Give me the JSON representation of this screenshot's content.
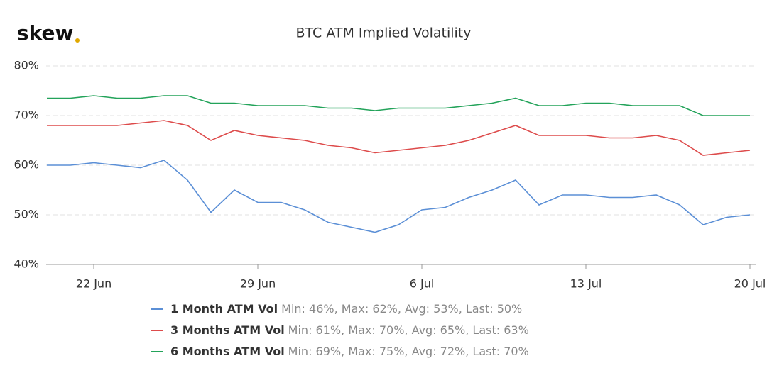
{
  "logo": "skew",
  "chart_data": {
    "type": "line",
    "title": "BTC ATM Implied Volatility",
    "x": [
      "20 Jun",
      "21 Jun",
      "22 Jun",
      "23 Jun",
      "24 Jun",
      "25 Jun",
      "26 Jun",
      "27 Jun",
      "28 Jun",
      "29 Jun",
      "30 Jun",
      "1 Jul",
      "2 Jul",
      "3 Jul",
      "4 Jul",
      "5 Jul",
      "6 Jul",
      "7 Jul",
      "8 Jul",
      "9 Jul",
      "10 Jul",
      "11 Jul",
      "12 Jul",
      "13 Jul",
      "14 Jul",
      "15 Jul",
      "16 Jul",
      "17 Jul",
      "18 Jul",
      "19 Jul",
      "20 Jul"
    ],
    "xticks": [
      "22 Jun",
      "29 Jun",
      "6 Jul",
      "13 Jul",
      "20 Jul"
    ],
    "ylim": [
      40,
      80
    ],
    "yticks": [
      {
        "value": 40,
        "label": "40%"
      },
      {
        "value": 50,
        "label": "50%"
      },
      {
        "value": 60,
        "label": "60%"
      },
      {
        "value": 70,
        "label": "70%"
      },
      {
        "value": 80,
        "label": "80%"
      }
    ],
    "grid": true,
    "legend": "bottom",
    "series": [
      {
        "name": "1 Month ATM Vol",
        "color": "#5b8fd6",
        "summary": "Min: 46%, Max: 62%, Avg: 53%, Last: 50%",
        "values": [
          60,
          60,
          60.5,
          60,
          59.5,
          61,
          57,
          50.5,
          55,
          52.5,
          52.5,
          51,
          48.5,
          47.5,
          46.5,
          48,
          51,
          51.5,
          53.5,
          55,
          57,
          52,
          54,
          54,
          53.5,
          53.5,
          54,
          52,
          48,
          49.5,
          50
        ]
      },
      {
        "name": "3 Months ATM Vol",
        "color": "#dd4b4b",
        "summary": "Min: 61%, Max: 70%, Avg: 65%, Last: 63%",
        "values": [
          68,
          68,
          68,
          68,
          68.5,
          69,
          68,
          65,
          67,
          66,
          65.5,
          65,
          64,
          63.5,
          62.5,
          63,
          63.5,
          64,
          65,
          66.5,
          68,
          66,
          66,
          66,
          65.5,
          65.5,
          66,
          65,
          62,
          62.5,
          63
        ]
      },
      {
        "name": "6 Months ATM Vol",
        "color": "#23a35a",
        "summary": "Min: 69%, Max: 75%, Avg: 72%, Last: 70%",
        "values": [
          73.5,
          73.5,
          74,
          73.5,
          73.5,
          74,
          74,
          72.5,
          72.5,
          72,
          72,
          72,
          71.5,
          71.5,
          71,
          71.5,
          71.5,
          71.5,
          72,
          72.5,
          73.5,
          72,
          72,
          72.5,
          72.5,
          72,
          72,
          72,
          70,
          70,
          70
        ]
      }
    ]
  }
}
